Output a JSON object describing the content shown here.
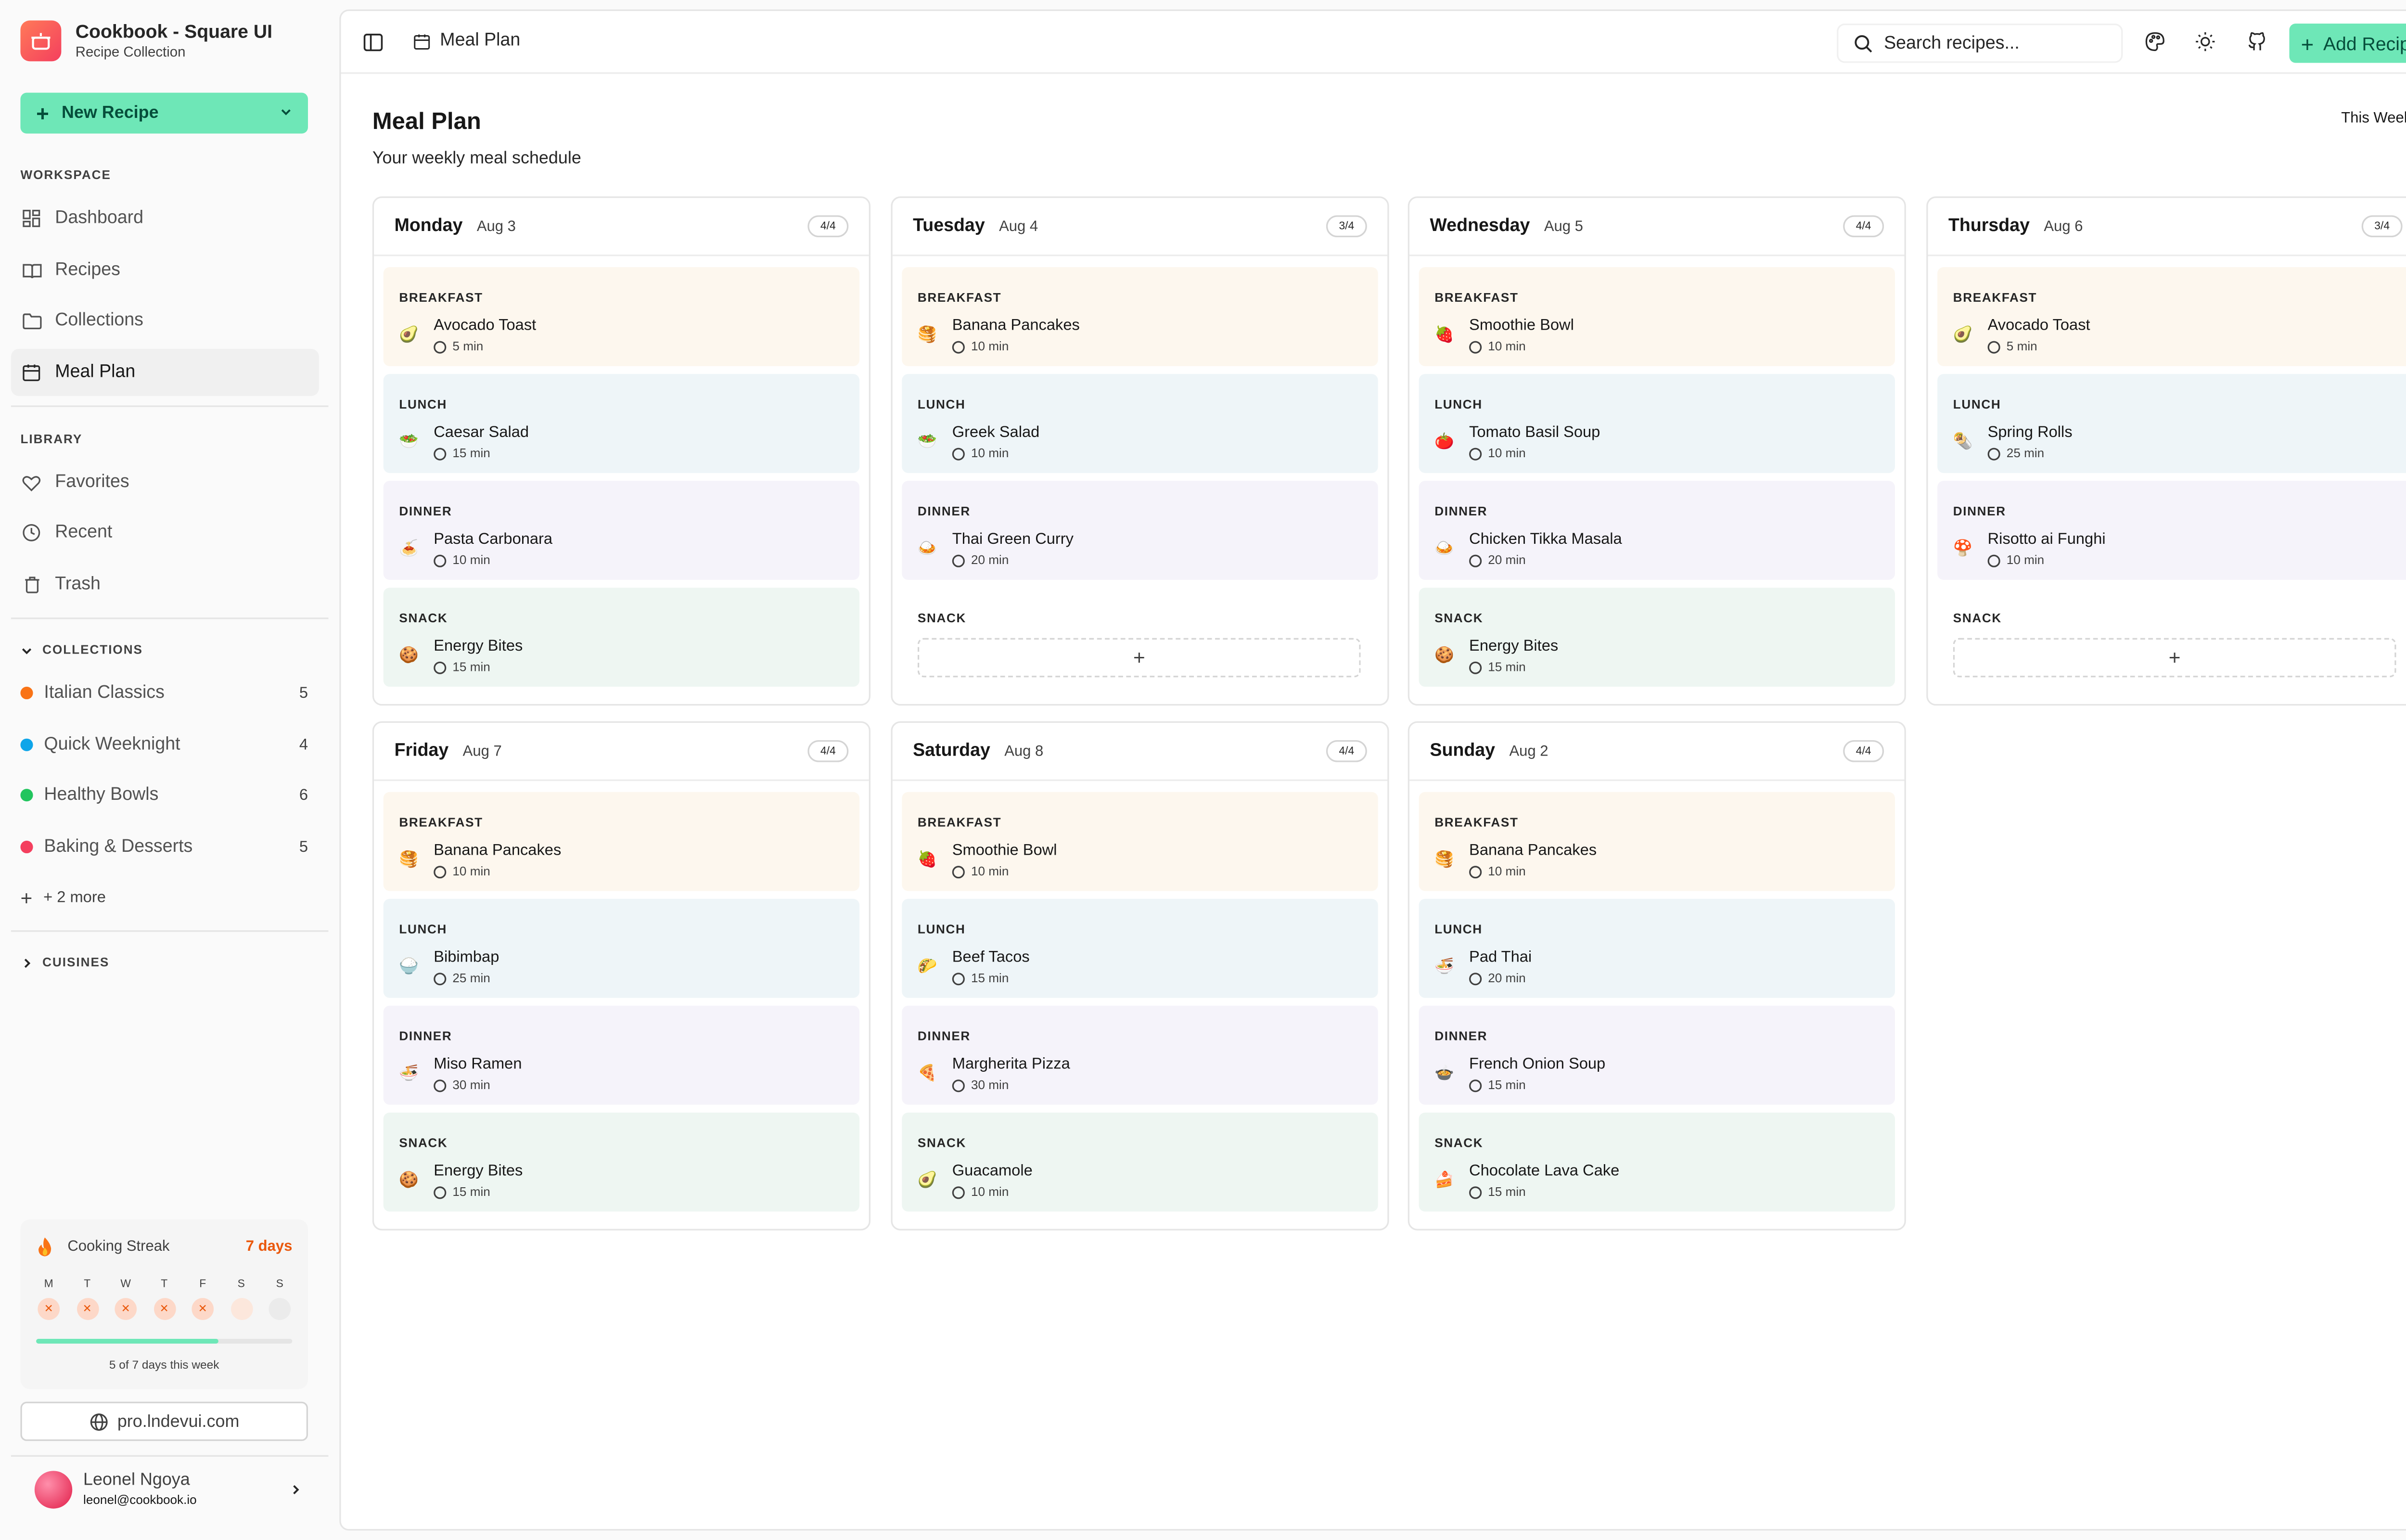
{
  "brand": {
    "title": "Cookbook - Square UI",
    "subtitle": "Recipe Collection"
  },
  "sidebar": {
    "new_recipe": "New Recipe",
    "workspace_label": "WORKSPACE",
    "workspace": [
      {
        "label": "Dashboard",
        "icon": "grid-icon"
      },
      {
        "label": "Recipes",
        "icon": "book-icon"
      },
      {
        "label": "Collections",
        "icon": "folder-icon"
      },
      {
        "label": "Meal Plan",
        "icon": "calendar-icon",
        "active": true
      }
    ],
    "library_label": "LIBRARY",
    "library": [
      {
        "label": "Favorites",
        "icon": "heart-icon"
      },
      {
        "label": "Recent",
        "icon": "clock-icon"
      },
      {
        "label": "Trash",
        "icon": "trash-icon"
      }
    ],
    "collections_label": "COLLECTIONS",
    "collections": [
      {
        "label": "Italian Classics",
        "count": "5",
        "color": "#f97316"
      },
      {
        "label": "Quick Weeknight",
        "count": "4",
        "color": "#0ea5e9"
      },
      {
        "label": "Healthy Bowls",
        "count": "6",
        "color": "#22c55e"
      },
      {
        "label": "Baking & Desserts",
        "count": "5",
        "color": "#f43f5e"
      }
    ],
    "more": "+ 2 more",
    "cuisines_label": "CUISINES",
    "streak": {
      "title": "Cooking Streak",
      "days": "7 days",
      "day_labels": [
        "M",
        "T",
        "W",
        "T",
        "F",
        "S",
        "S"
      ],
      "completed": 5,
      "total": 7,
      "footer": "5 of 7 days this week"
    },
    "site": "pro.lndevui.com",
    "user": {
      "name": "Leonel Ngoya",
      "email": "leonel@cookbook.io"
    }
  },
  "topbar": {
    "breadcrumb": "Meal Plan",
    "search_placeholder": "Search recipes...",
    "add_recipe": "Add Recipe"
  },
  "page": {
    "title": "Meal Plan",
    "subtitle": "Your weekly meal schedule",
    "range": "This Week"
  },
  "days": [
    {
      "day": "Monday",
      "date": "Aug 3",
      "badge": "4/4",
      "meals": [
        {
          "type": "BREAKFAST",
          "name": "Avocado Toast",
          "time": "5 min",
          "emoji": "🥑"
        },
        {
          "type": "LUNCH",
          "name": "Caesar Salad",
          "time": "15 min",
          "emoji": "🥗"
        },
        {
          "type": "DINNER",
          "name": "Pasta Carbonara",
          "time": "10 min",
          "emoji": "🍝"
        },
        {
          "type": "SNACK",
          "name": "Energy Bites",
          "time": "15 min",
          "emoji": "🍪"
        }
      ]
    },
    {
      "day": "Tuesday",
      "date": "Aug 4",
      "badge": "3/4",
      "meals": [
        {
          "type": "BREAKFAST",
          "name": "Banana Pancakes",
          "time": "10 min",
          "emoji": "🥞"
        },
        {
          "type": "LUNCH",
          "name": "Greek Salad",
          "time": "10 min",
          "emoji": "🥗"
        },
        {
          "type": "DINNER",
          "name": "Thai Green Curry",
          "time": "20 min",
          "emoji": "🍛"
        },
        {
          "type": "SNACK",
          "empty": true
        }
      ]
    },
    {
      "day": "Wednesday",
      "date": "Aug 5",
      "badge": "4/4",
      "meals": [
        {
          "type": "BREAKFAST",
          "name": "Smoothie Bowl",
          "time": "10 min",
          "emoji": "🍓"
        },
        {
          "type": "LUNCH",
          "name": "Tomato Basil Soup",
          "time": "10 min",
          "emoji": "🍅"
        },
        {
          "type": "DINNER",
          "name": "Chicken Tikka Masala",
          "time": "20 min",
          "emoji": "🍛"
        },
        {
          "type": "SNACK",
          "name": "Energy Bites",
          "time": "15 min",
          "emoji": "🍪"
        }
      ]
    },
    {
      "day": "Thursday",
      "date": "Aug 6",
      "badge": "3/4",
      "meals": [
        {
          "type": "BREAKFAST",
          "name": "Avocado Toast",
          "time": "5 min",
          "emoji": "🥑"
        },
        {
          "type": "LUNCH",
          "name": "Spring Rolls",
          "time": "25 min",
          "emoji": "🌯"
        },
        {
          "type": "DINNER",
          "name": "Risotto ai Funghi",
          "time": "10 min",
          "emoji": "🍄"
        },
        {
          "type": "SNACK",
          "empty": true
        }
      ]
    },
    {
      "day": "Friday",
      "date": "Aug 7",
      "badge": "4/4",
      "meals": [
        {
          "type": "BREAKFAST",
          "name": "Banana Pancakes",
          "time": "10 min",
          "emoji": "🥞"
        },
        {
          "type": "LUNCH",
          "name": "Bibimbap",
          "time": "25 min",
          "emoji": "🍚"
        },
        {
          "type": "DINNER",
          "name": "Miso Ramen",
          "time": "30 min",
          "emoji": "🍜"
        },
        {
          "type": "SNACK",
          "name": "Energy Bites",
          "time": "15 min",
          "emoji": "🍪"
        }
      ]
    },
    {
      "day": "Saturday",
      "date": "Aug 8",
      "badge": "4/4",
      "meals": [
        {
          "type": "BREAKFAST",
          "name": "Smoothie Bowl",
          "time": "10 min",
          "emoji": "🍓"
        },
        {
          "type": "LUNCH",
          "name": "Beef Tacos",
          "time": "15 min",
          "emoji": "🌮"
        },
        {
          "type": "DINNER",
          "name": "Margherita Pizza",
          "time": "30 min",
          "emoji": "🍕"
        },
        {
          "type": "SNACK",
          "name": "Guacamole",
          "time": "10 min",
          "emoji": "🥑"
        }
      ]
    },
    {
      "day": "Sunday",
      "date": "Aug 2",
      "badge": "4/4",
      "meals": [
        {
          "type": "BREAKFAST",
          "name": "Banana Pancakes",
          "time": "10 min",
          "emoji": "🥞"
        },
        {
          "type": "LUNCH",
          "name": "Pad Thai",
          "time": "20 min",
          "emoji": "🍜"
        },
        {
          "type": "DINNER",
          "name": "French Onion Soup",
          "time": "15 min",
          "emoji": "🍲"
        },
        {
          "type": "SNACK",
          "name": "Chocolate Lava Cake",
          "time": "15 min",
          "emoji": "🍰"
        }
      ]
    }
  ]
}
